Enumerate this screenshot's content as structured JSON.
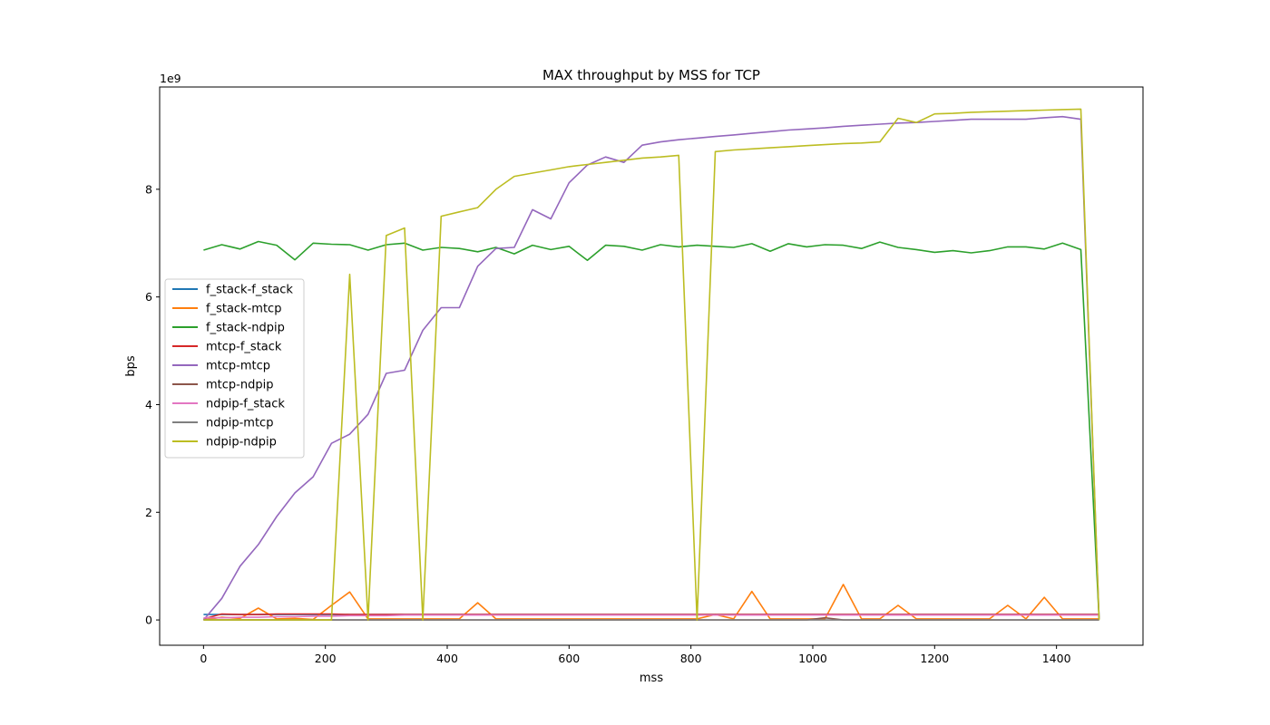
{
  "chart_data": {
    "type": "line",
    "title": "MAX throughput by MSS for TCP",
    "xlabel": "mss",
    "ylabel": "bps",
    "y_offset_label": "1e9",
    "xlim": [
      -72,
      1542
    ],
    "ylim": [
      -0.47,
      9.9
    ],
    "xticks": [
      0,
      200,
      400,
      600,
      800,
      1000,
      1200,
      1400
    ],
    "yticks": [
      0,
      2,
      4,
      6,
      8
    ],
    "grid": false,
    "legend_position": "center-left",
    "x": [
      0,
      30,
      60,
      90,
      120,
      150,
      180,
      210,
      240,
      270,
      300,
      330,
      360,
      390,
      420,
      450,
      480,
      510,
      540,
      570,
      600,
      630,
      660,
      690,
      720,
      750,
      780,
      810,
      840,
      870,
      900,
      930,
      960,
      990,
      1020,
      1050,
      1080,
      1110,
      1140,
      1170,
      1200,
      1230,
      1260,
      1290,
      1320,
      1350,
      1380,
      1410,
      1440,
      1470
    ],
    "series": [
      {
        "name": "f_stack-f_stack",
        "color": "#1f77b4",
        "values": [
          0.1,
          0.1,
          0.1,
          0.1,
          0.1,
          0.1,
          0.1,
          0.1,
          0.1,
          0.1,
          0.1,
          0.1,
          0.1,
          0.1,
          0.1,
          0.1,
          0.1,
          0.1,
          0.1,
          0.1,
          0.1,
          0.1,
          0.1,
          0.1,
          0.1,
          0.1,
          0.1,
          0.1,
          0.1,
          0.1,
          0.1,
          0.1,
          0.1,
          0.1,
          0.1,
          0.1,
          0.1,
          0.1,
          0.1,
          0.1,
          0.1,
          0.1,
          0.1,
          0.1,
          0.1,
          0.1,
          0.1,
          0.1,
          0.1,
          0.1
        ]
      },
      {
        "name": "f_stack-mtcp",
        "color": "#ff7f0e",
        "values": [
          0.0,
          0.05,
          0.03,
          0.22,
          0.02,
          0.03,
          0.01,
          0.27,
          0.52,
          0.02,
          0.02,
          0.02,
          0.02,
          0.02,
          0.02,
          0.32,
          0.02,
          0.02,
          0.02,
          0.02,
          0.02,
          0.02,
          0.02,
          0.02,
          0.02,
          0.02,
          0.02,
          0.02,
          0.1,
          0.02,
          0.53,
          0.02,
          0.02,
          0.02,
          0.02,
          0.66,
          0.02,
          0.02,
          0.27,
          0.02,
          0.02,
          0.02,
          0.02,
          0.02,
          0.27,
          0.02,
          0.42,
          0.02,
          0.02,
          0.02
        ]
      },
      {
        "name": "f_stack-ndpip",
        "color": "#2ca02c",
        "values": [
          6.87,
          6.97,
          6.89,
          7.03,
          6.96,
          6.69,
          7.0,
          6.98,
          6.97,
          6.87,
          6.97,
          7.0,
          6.87,
          6.92,
          6.9,
          6.84,
          6.92,
          6.8,
          6.96,
          6.88,
          6.94,
          6.68,
          6.96,
          6.94,
          6.87,
          6.97,
          6.93,
          6.96,
          6.94,
          6.92,
          6.99,
          6.85,
          6.99,
          6.93,
          6.97,
          6.96,
          6.9,
          7.02,
          6.92,
          6.88,
          6.83,
          6.86,
          6.82,
          6.86,
          6.93,
          6.93,
          6.89,
          7.0,
          6.88,
          0.02
        ]
      },
      {
        "name": "mtcp-f_stack",
        "color": "#d62728",
        "values": [
          0.02,
          0.11,
          0.1,
          0.1,
          0.11,
          0.11,
          0.11,
          0.11,
          0.1,
          0.1,
          0.1,
          0.1,
          0.1,
          0.1,
          0.1,
          0.1,
          0.1,
          0.1,
          0.1,
          0.1,
          0.1,
          0.1,
          0.1,
          0.1,
          0.1,
          0.1,
          0.1,
          0.1,
          0.1,
          0.1,
          0.1,
          0.1,
          0.1,
          0.1,
          0.1,
          0.1,
          0.1,
          0.1,
          0.1,
          0.1,
          0.1,
          0.1,
          0.1,
          0.1,
          0.1,
          0.1,
          0.1,
          0.1,
          0.1,
          0.1
        ]
      },
      {
        "name": "mtcp-mtcp",
        "color": "#9467bd",
        "values": [
          0.0,
          0.4,
          1.0,
          1.4,
          1.92,
          2.36,
          2.66,
          3.28,
          3.45,
          3.82,
          4.58,
          4.64,
          5.38,
          5.8,
          5.8,
          6.57,
          6.9,
          6.92,
          7.62,
          7.45,
          8.12,
          8.45,
          8.6,
          8.5,
          8.82,
          8.88,
          8.92,
          8.95,
          8.98,
          9.01,
          9.04,
          9.07,
          9.1,
          9.12,
          9.14,
          9.17,
          9.19,
          9.21,
          9.23,
          9.24,
          9.26,
          9.28,
          9.3,
          9.3,
          9.3,
          9.3,
          9.33,
          9.35,
          9.3,
          0.02
        ]
      },
      {
        "name": "mtcp-ndpip",
        "color": "#8c564b",
        "values": [
          0.0,
          0.0,
          0.0,
          0.0,
          0.0,
          0.0,
          0.0,
          0.0,
          0.0,
          0.0,
          0.0,
          0.0,
          0.0,
          0.0,
          0.0,
          0.0,
          0.0,
          0.0,
          0.0,
          0.0,
          0.0,
          0.0,
          0.0,
          0.0,
          0.0,
          0.0,
          0.0,
          0.0,
          0.0,
          0.0,
          0.0,
          0.0,
          0.0,
          0.0,
          0.04,
          0.0,
          0.0,
          0.0,
          0.0,
          0.0,
          0.0,
          0.0,
          0.0,
          0.0,
          0.0,
          0.0,
          0.0,
          0.0,
          0.0,
          0.0
        ]
      },
      {
        "name": "ndpip-f_stack",
        "color": "#e377c2",
        "values": [
          0.04,
          0.04,
          0.05,
          0.05,
          0.06,
          0.06,
          0.07,
          0.07,
          0.08,
          0.08,
          0.08,
          0.09,
          0.09,
          0.09,
          0.09,
          0.09,
          0.09,
          0.09,
          0.09,
          0.09,
          0.09,
          0.09,
          0.09,
          0.09,
          0.09,
          0.09,
          0.09,
          0.09,
          0.09,
          0.09,
          0.09,
          0.09,
          0.09,
          0.09,
          0.09,
          0.09,
          0.09,
          0.09,
          0.09,
          0.09,
          0.09,
          0.09,
          0.09,
          0.09,
          0.09,
          0.09,
          0.09,
          0.09,
          0.09,
          0.09
        ]
      },
      {
        "name": "ndpip-mtcp",
        "color": "#7f7f7f",
        "values": [
          0.0,
          0.0,
          0.0,
          0.0,
          0.0,
          0.0,
          0.0,
          0.0,
          0.0,
          0.0,
          0.0,
          0.0,
          0.0,
          0.0,
          0.0,
          0.0,
          0.0,
          0.0,
          0.0,
          0.0,
          0.0,
          0.0,
          0.0,
          0.0,
          0.0,
          0.0,
          0.0,
          0.0,
          0.0,
          0.0,
          0.0,
          0.0,
          0.0,
          0.0,
          0.0,
          0.0,
          0.0,
          0.0,
          0.0,
          0.0,
          0.0,
          0.0,
          0.0,
          0.0,
          0.0,
          0.0,
          0.0,
          0.0,
          0.0,
          0.0
        ]
      },
      {
        "name": "ndpip-ndpip",
        "color": "#bcbd22",
        "values": [
          0.0,
          0.0,
          0.0,
          0.0,
          0.0,
          0.0,
          0.0,
          0.0,
          6.42,
          0.0,
          7.14,
          7.28,
          0.0,
          7.5,
          7.58,
          7.66,
          8.0,
          8.24,
          8.3,
          8.36,
          8.42,
          8.46,
          8.5,
          8.54,
          8.58,
          8.6,
          8.63,
          0.0,
          8.7,
          8.73,
          8.75,
          8.77,
          8.79,
          8.81,
          8.83,
          8.85,
          8.86,
          8.88,
          9.32,
          9.24,
          9.4,
          9.41,
          9.43,
          9.44,
          9.45,
          9.46,
          9.47,
          9.48,
          9.49,
          0.0
        ]
      }
    ]
  }
}
